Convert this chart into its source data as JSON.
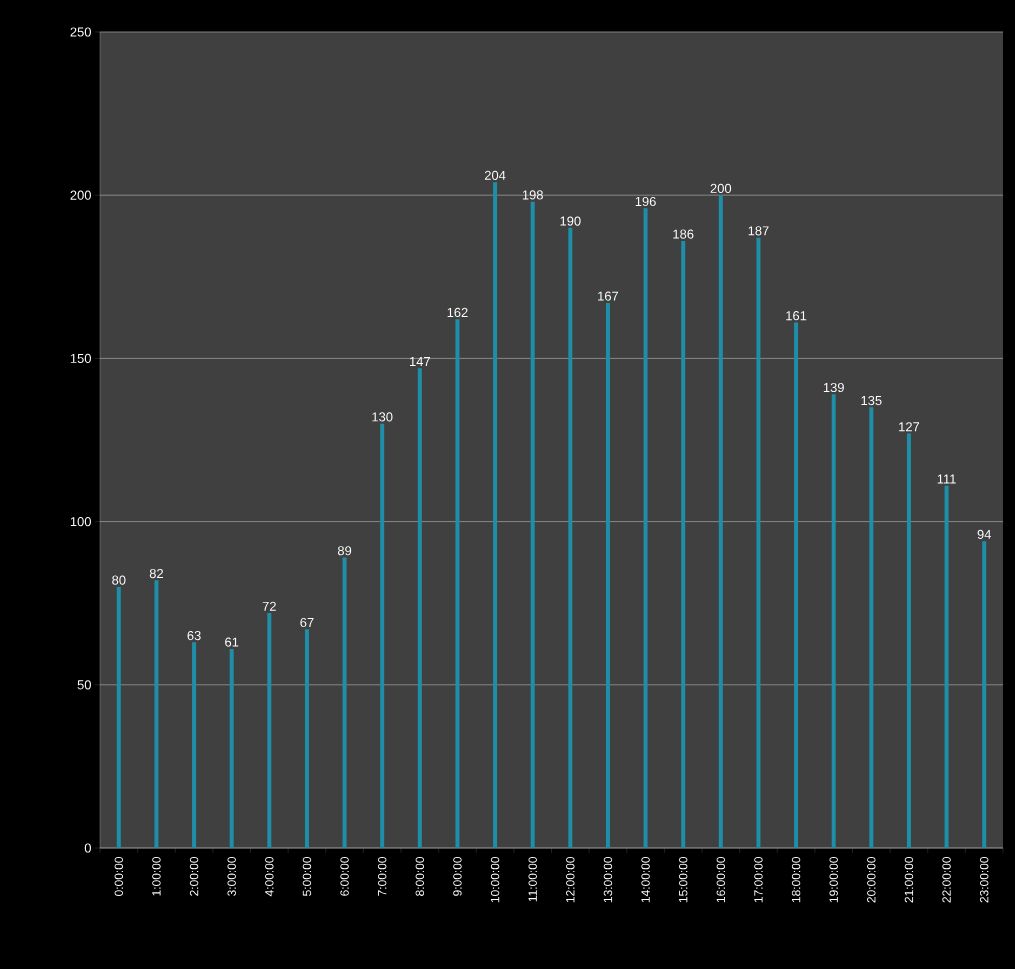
{
  "chart_data": {
    "type": "bar",
    "categories": [
      "0:00:00",
      "1:00:00",
      "2:00:00",
      "3:00:00",
      "4:00:00",
      "5:00:00",
      "6:00:00",
      "7:00:00",
      "8:00:00",
      "9:00:00",
      "10:00:00",
      "11:00:00",
      "12:00:00",
      "13:00:00",
      "14:00:00",
      "15:00:00",
      "16:00:00",
      "17:00:00",
      "18:00:00",
      "19:00:00",
      "20:00:00",
      "21:00:00",
      "22:00:00",
      "23:00:00"
    ],
    "values": [
      80,
      82,
      63,
      61,
      72,
      67,
      89,
      130,
      147,
      162,
      204,
      198,
      190,
      167,
      196,
      186,
      200,
      187,
      161,
      139,
      135,
      127,
      111,
      94
    ],
    "color": "#1f8ea8",
    "ylim": [
      0,
      250
    ],
    "yticks": [
      0,
      50,
      100,
      150,
      200,
      250
    ],
    "grid": "y",
    "data_labels": true
  }
}
